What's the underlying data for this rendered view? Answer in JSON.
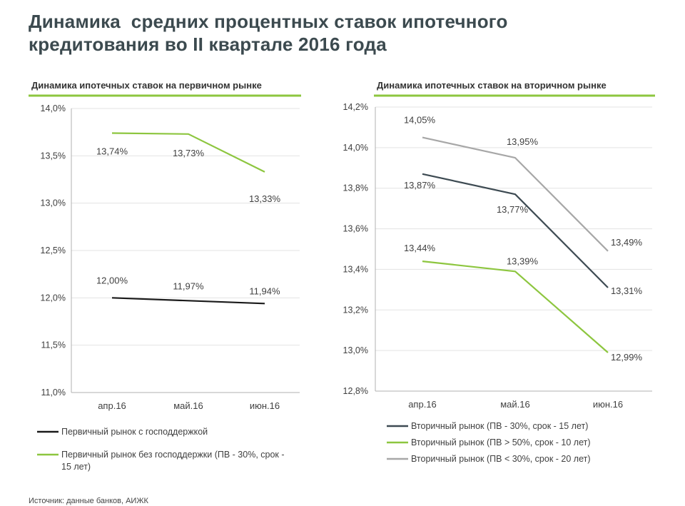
{
  "header": {
    "title_line1": "Динамика  средних процентных ставок ипотечного",
    "title_line2": "кредитования во II квартале 2016 года"
  },
  "colors": {
    "accent_green": "#8dc63f",
    "dark": "#1a1a1a",
    "dark_slate": "#3d4a52",
    "light_gray": "#a7a7a7",
    "grid": "#e3e3e3",
    "axis": "#b0b0b0",
    "text": "#404040"
  },
  "chart_data": [
    {
      "type": "line",
      "title": "Динамика ипотечных ставок на первичном рынке",
      "categories": [
        "апр.16",
        "май.16",
        "июн.16"
      ],
      "ylim": [
        11.0,
        14.0
      ],
      "yticks": [
        11.0,
        11.5,
        12.0,
        12.5,
        13.0,
        13.5,
        14.0
      ],
      "ytick_labels": [
        "11,0%",
        "11,5%",
        "12,0%",
        "12,5%",
        "13,0%",
        "13,5%",
        "14,0%"
      ],
      "grid": true,
      "series": [
        {
          "name": "Первичный рынок с господдержкой",
          "legend_lines": [
            "Первичный рынок с господдержкой"
          ],
          "color": "#1a1a1a",
          "values": [
            12.0,
            11.97,
            11.94
          ],
          "labels": [
            "12,00%",
            "11,97%",
            "11,94%"
          ]
        },
        {
          "name": "Первичный рынок без господдержки (ПВ - 30%, срок - 15 лет)",
          "legend_lines": [
            "Первичный рынок без господдержки (ПВ - 30%, срок -",
            "15 лет)"
          ],
          "color": "#8dc63f",
          "values": [
            13.74,
            13.73,
            13.33
          ],
          "labels": [
            "13,74%",
            "13,73%",
            "13,33%"
          ]
        }
      ]
    },
    {
      "type": "line",
      "title": "Динамика ипотечных ставок на вторичном рынке",
      "categories": [
        "апр.16",
        "май.16",
        "июн.16"
      ],
      "ylim": [
        12.8,
        14.2
      ],
      "yticks": [
        12.8,
        13.0,
        13.2,
        13.4,
        13.6,
        13.8,
        14.0,
        14.2
      ],
      "ytick_labels": [
        "12,8%",
        "13,0%",
        "13,2%",
        "13,4%",
        "13,6%",
        "13,8%",
        "14,0%",
        "14,2%"
      ],
      "grid": true,
      "series": [
        {
          "name": "Вторичный рынок (ПВ - 30%, срок - 15 лет)",
          "legend_lines": [
            "Вторичный рынок (ПВ - 30%, срок - 15 лет)"
          ],
          "color": "#3d4a52",
          "values": [
            13.87,
            13.77,
            13.31
          ],
          "labels": [
            "13,87%",
            "13,77%",
            "13,31%"
          ]
        },
        {
          "name": "Вторичный рынок (ПВ > 50%, срок - 10 лет)",
          "legend_lines": [
            "Вторичный рынок (ПВ > 50%, срок - 10 лет)"
          ],
          "color": "#8dc63f",
          "values": [
            13.44,
            13.39,
            12.99
          ],
          "labels": [
            "13,44%",
            "13,39%",
            "12,99%"
          ]
        },
        {
          "name": "Вторичный рынок (ПВ < 30%, срок - 20 лет)",
          "legend_lines": [
            "Вторичный рынок (ПВ < 30%, срок - 20 лет)"
          ],
          "color": "#a7a7a7",
          "values": [
            14.05,
            13.95,
            13.49
          ],
          "labels": [
            "14,05%",
            "13,95%",
            "13,49%"
          ]
        }
      ]
    }
  ],
  "footer": {
    "source": "Источник: данные банков, АИЖК"
  }
}
